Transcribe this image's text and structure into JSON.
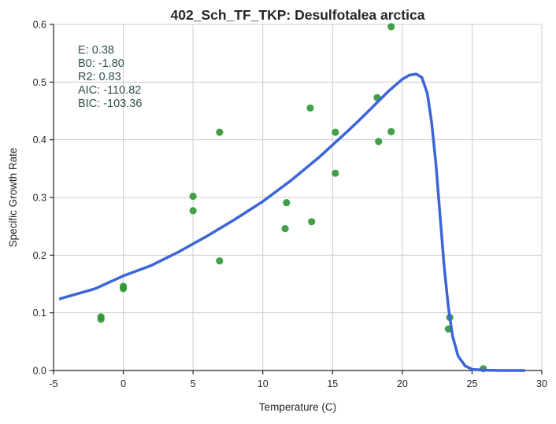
{
  "chart_data": {
    "type": "scatter",
    "title": "402_Sch_TF_TKP: Desulfotalea arctica",
    "xlabel": "Temperature (C)",
    "ylabel": "Specific Growth Rate",
    "xlim": [
      -5,
      30
    ],
    "ylim": [
      0,
      0.6
    ],
    "xticks": [
      -5,
      0,
      5,
      10,
      15,
      20,
      25,
      30
    ],
    "yticks": [
      0.0,
      0.1,
      0.2,
      0.3,
      0.4,
      0.5,
      0.6
    ],
    "grid": true,
    "stats": [
      "E:  0.38",
      "B0:  -1.80",
      "R2:  0.83",
      "AIC: -110.82",
      "BIC: -103.36"
    ],
    "colors": {
      "points": "#2e9632",
      "curve": "#3b65d9"
    },
    "series": [
      {
        "type": "scatter",
        "points": [
          [
            -1.6,
            0.093
          ],
          [
            -1.6,
            0.089
          ],
          [
            0.0,
            0.146
          ],
          [
            0.0,
            0.142
          ],
          [
            5.0,
            0.302
          ],
          [
            5.0,
            0.277
          ],
          [
            6.9,
            0.413
          ],
          [
            6.9,
            0.19
          ],
          [
            11.6,
            0.246
          ],
          [
            11.7,
            0.291
          ],
          [
            13.4,
            0.455
          ],
          [
            13.5,
            0.258
          ],
          [
            15.2,
            0.413
          ],
          [
            15.2,
            0.342
          ],
          [
            18.2,
            0.473
          ],
          [
            18.3,
            0.397
          ],
          [
            19.2,
            0.596
          ],
          [
            19.2,
            0.414
          ],
          [
            23.4,
            0.092
          ],
          [
            23.3,
            0.072
          ],
          [
            25.8,
            0.003
          ]
        ]
      },
      {
        "type": "line",
        "points": [
          [
            -4.6,
            0.124
          ],
          [
            -2,
            0.142
          ],
          [
            0,
            0.164
          ],
          [
            2,
            0.182
          ],
          [
            4,
            0.206
          ],
          [
            6,
            0.233
          ],
          [
            8,
            0.262
          ],
          [
            10,
            0.293
          ],
          [
            12,
            0.329
          ],
          [
            14,
            0.369
          ],
          [
            16,
            0.413
          ],
          [
            17,
            0.436
          ],
          [
            18,
            0.46
          ],
          [
            19,
            0.484
          ],
          [
            20,
            0.505
          ],
          [
            20.5,
            0.512
          ],
          [
            21,
            0.514
          ],
          [
            21.4,
            0.508
          ],
          [
            21.8,
            0.48
          ],
          [
            22.1,
            0.43
          ],
          [
            22.4,
            0.36
          ],
          [
            22.7,
            0.27
          ],
          [
            23.0,
            0.18
          ],
          [
            23.3,
            0.11
          ],
          [
            23.6,
            0.06
          ],
          [
            24.0,
            0.025
          ],
          [
            24.5,
            0.008
          ],
          [
            25.0,
            0.002
          ],
          [
            26,
            0.0005
          ],
          [
            27,
            0.0
          ],
          [
            28.8,
            0.0
          ]
        ]
      }
    ]
  }
}
